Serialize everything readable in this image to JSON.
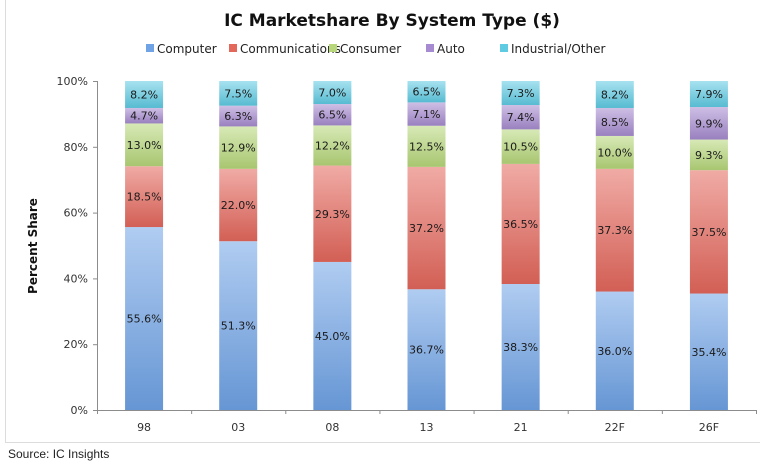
{
  "chart_data": {
    "type": "bar",
    "stacked": true,
    "title": "IC Marketshare By System Type ($)",
    "xlabel": "",
    "ylabel": "Percent Share",
    "ylim": [
      0,
      100
    ],
    "yticks": [
      "0%",
      "20%",
      "40%",
      "60%",
      "80%",
      "100%"
    ],
    "grid": false,
    "legend_position": "top",
    "categories": [
      "98",
      "03",
      "08",
      "13",
      "21",
      "22F",
      "26F"
    ],
    "series": [
      {
        "name": "Computer",
        "color": "#6fa3e6",
        "values": [
          55.6,
          51.3,
          45.0,
          36.7,
          38.3,
          36.0,
          35.4
        ],
        "labels": [
          "55.6%",
          "51.3%",
          "45.0%",
          "36.7%",
          "38.3%",
          "36.0%",
          "35.4%"
        ]
      },
      {
        "name": "Communications",
        "color": "#e4675c",
        "values": [
          18.5,
          22.0,
          29.3,
          37.2,
          36.5,
          37.3,
          37.5
        ],
        "labels": [
          "18.5%",
          "22.0%",
          "29.3%",
          "37.2%",
          "36.5%",
          "37.3%",
          "37.5%"
        ]
      },
      {
        "name": "Consumer",
        "color": "#b7d77a",
        "values": [
          13.0,
          12.9,
          12.2,
          12.5,
          10.5,
          10.0,
          9.3
        ],
        "labels": [
          "13.0%",
          "12.9%",
          "12.2%",
          "12.5%",
          "10.5%",
          "10.0%",
          "9.3%"
        ]
      },
      {
        "name": "Auto",
        "color": "#a68bd0",
        "values": [
          4.7,
          6.3,
          6.5,
          7.1,
          7.4,
          8.5,
          9.9
        ],
        "labels": [
          "4.7%",
          "6.3%",
          "6.5%",
          "7.1%",
          "7.4%",
          "8.5%",
          "9.9%"
        ]
      },
      {
        "name": "Industrial/Other",
        "color": "#5fcbe3",
        "values": [
          8.2,
          7.5,
          7.0,
          6.5,
          7.3,
          8.2,
          7.9
        ],
        "labels": [
          "8.2%",
          "7.5%",
          "7.0%",
          "6.5%",
          "7.3%",
          "8.2%",
          "7.9%"
        ]
      }
    ]
  },
  "source": "Source: IC Insights"
}
